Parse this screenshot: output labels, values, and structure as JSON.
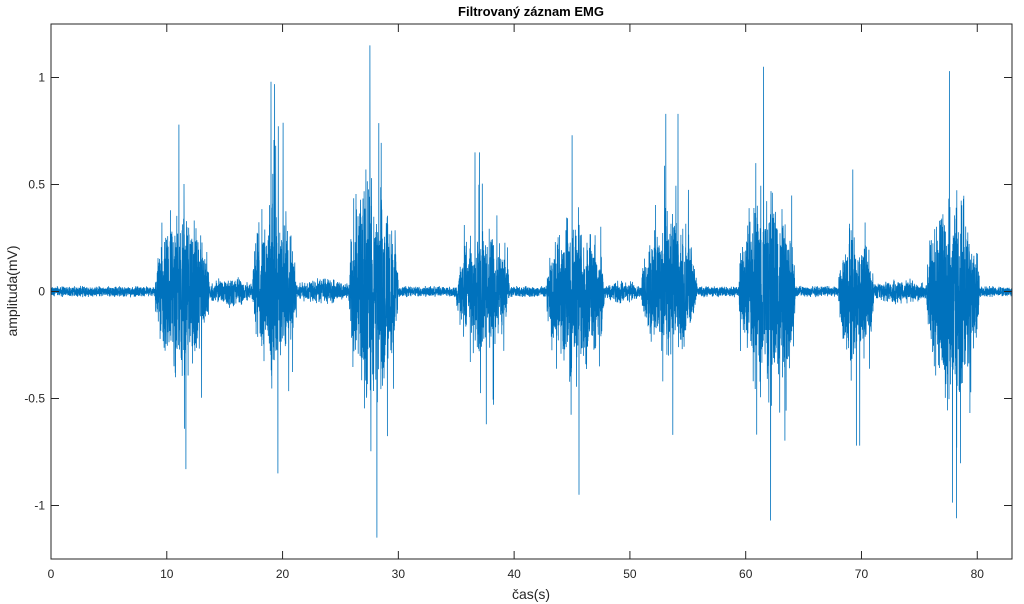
{
  "chart_data": {
    "type": "line",
    "title": "Filtrovaný záznam EMG",
    "xlabel": "čas(s)",
    "ylabel": "amplituda(mV)",
    "xlim": [
      0,
      83
    ],
    "ylim": [
      -1.25,
      1.25
    ],
    "x_ticks": [
      0,
      10,
      20,
      30,
      40,
      50,
      60,
      70,
      80
    ],
    "y_ticks": [
      -1,
      -0.5,
      0,
      0.5,
      1
    ],
    "x_tick_labels": [
      "0",
      "10",
      "20",
      "30",
      "40",
      "50",
      "60",
      "70",
      "80"
    ],
    "y_tick_labels": [
      "-1",
      "-0.5",
      "0",
      "0.5",
      "1"
    ],
    "grid": false,
    "box": true,
    "line_color": "#0072BD",
    "series": [
      {
        "baseline_amplitude": 0.02,
        "bursts": [
          {
            "start": 9.0,
            "end": 13.7,
            "max": 0.78,
            "min": -0.83
          },
          {
            "start": 17.4,
            "end": 21.2,
            "max": 0.98,
            "min": -0.85
          },
          {
            "start": 25.7,
            "end": 30.0,
            "max": 1.15,
            "min": -1.15
          },
          {
            "start": 35.0,
            "end": 39.6,
            "max": 0.65,
            "min": -0.62
          },
          {
            "start": 42.8,
            "end": 47.8,
            "max": 0.73,
            "min": -0.95
          },
          {
            "start": 51.0,
            "end": 55.8,
            "max": 0.83,
            "min": -0.67
          },
          {
            "start": 59.4,
            "end": 64.3,
            "max": 1.05,
            "min": -1.07
          },
          {
            "start": 68.0,
            "end": 71.1,
            "max": 0.57,
            "min": -0.72
          },
          {
            "start": 75.6,
            "end": 80.2,
            "max": 1.03,
            "min": -1.06
          }
        ],
        "low_activity_segments": [
          {
            "start": 13.7,
            "end": 17.4,
            "amplitude": 0.08
          },
          {
            "start": 21.2,
            "end": 25.7,
            "amplitude": 0.07
          },
          {
            "start": 47.8,
            "end": 51.0,
            "amplitude": 0.06
          },
          {
            "start": 71.1,
            "end": 75.6,
            "amplitude": 0.07
          }
        ]
      }
    ]
  }
}
